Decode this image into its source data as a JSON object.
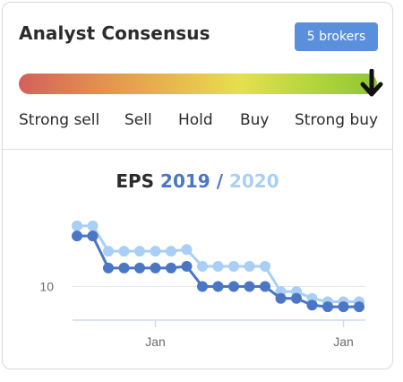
{
  "consensus": {
    "title": "Analyst Consensus",
    "brokers_label": "5 brokers",
    "ratings": [
      "Strong sell",
      "Sell",
      "Hold",
      "Buy",
      "Strong buy"
    ],
    "selected_rating": "Strong buy",
    "marker_icon": "arrow-down-icon",
    "gradient_colors": [
      "#d4605a",
      "#e3934f",
      "#e9c24e",
      "#e6df4f",
      "#b3d53e",
      "#8fc634"
    ]
  },
  "eps": {
    "label": "EPS",
    "year_a": "2019",
    "separator": "/",
    "year_b": "2020"
  },
  "chart_data": {
    "type": "line",
    "title": "EPS 2019 / 2020",
    "x": [
      0,
      1,
      2,
      3,
      4,
      5,
      6,
      7,
      8,
      9,
      10,
      11,
      12,
      13,
      14,
      15,
      16,
      17,
      18
    ],
    "x_tick_labels": [
      {
        "x": 5,
        "label": "Jan"
      },
      {
        "x": 17,
        "label": "Jan"
      }
    ],
    "y_tick_labels": [
      {
        "y": 10,
        "label": "10"
      }
    ],
    "ylim": [
      7.9,
      14.5
    ],
    "grid": "horizontal",
    "series": [
      {
        "name": "2019",
        "color": "#4b75c5",
        "values": [
          13.0,
          13.0,
          11.1,
          11.1,
          11.1,
          11.1,
          11.1,
          11.2,
          10.0,
          10.0,
          10.0,
          10.0,
          10.0,
          9.3,
          9.3,
          8.9,
          8.8,
          8.8,
          8.8
        ]
      },
      {
        "name": "2020",
        "color": "#a9cff5",
        "values": [
          13.6,
          13.6,
          12.1,
          12.1,
          12.1,
          12.1,
          12.1,
          12.2,
          11.2,
          11.2,
          11.2,
          11.2,
          11.2,
          9.7,
          9.7,
          9.3,
          9.1,
          9.1,
          9.1
        ]
      }
    ]
  }
}
